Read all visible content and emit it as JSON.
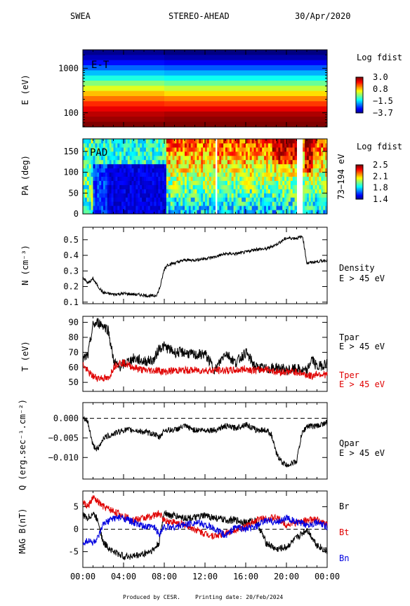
{
  "header": {
    "instrument": "SWEA",
    "spacecraft": "STEREO-AHEAD",
    "date": "30/Apr/2020"
  },
  "footer": {
    "produced": "Produced by CESR.",
    "printing": "Printing date: 20/Feb/2024"
  },
  "colors": {
    "tpar": "#000000",
    "tper": "#e00000",
    "br": "#000000",
    "bt": "#e00000",
    "bn": "#0000e0"
  },
  "x_ticks": [
    "00:00",
    "04:00",
    "08:00",
    "12:00",
    "16:00",
    "20:00",
    "00:00"
  ],
  "chart_data": [
    {
      "type": "heatmap",
      "panel": "E-T spectrogram",
      "inset_label": "E-T",
      "ylabel": "E (eV)",
      "yscale": "log",
      "ytick_labels": [
        "1000",
        "100"
      ],
      "colorbar_title": "Log fdist",
      "colorbar_ticks": [
        "3.0",
        "0.8",
        "−1.5",
        "−3.7"
      ],
      "colorbar_range": [
        -3.7,
        3.0
      ],
      "rows_note": "energy bins from high (top) to low (bottom)",
      "values": {
        "segment1_0000_0800": [
          -3.6,
          -3.3,
          -2.8,
          -2.2,
          -1.6,
          -1.0,
          -0.3,
          0.3,
          0.9,
          1.4,
          1.9,
          2.3,
          2.6,
          2.8,
          3.0
        ],
        "segment2_0800_2400": [
          -3.7,
          -3.4,
          -2.9,
          -2.3,
          -1.7,
          -1.1,
          -0.5,
          0.1,
          0.7,
          1.3,
          1.8,
          2.3,
          2.7,
          2.9,
          3.0
        ]
      }
    },
    {
      "type": "heatmap",
      "panel": "Pitch angle distribution",
      "inset_label": "PAD",
      "ylabel": "PA (deg)",
      "right_label": "73−194 eV",
      "yticks": [
        0,
        50,
        100,
        150
      ],
      "ylim": [
        0,
        180
      ],
      "colorbar_title": "Log fdist",
      "colorbar_ticks": [
        "2.5",
        "2.1",
        "1.8",
        "1.4"
      ],
      "colorbar_range": [
        1.4,
        2.5
      ]
    },
    {
      "type": "line",
      "panel": "Density",
      "ylabel": "N (cm⁻³)",
      "legend": [
        "Density",
        "E > 45 eV"
      ],
      "yticks": [
        0.1,
        0.2,
        0.3,
        0.4,
        0.5
      ],
      "ylim": [
        0.09,
        0.58
      ],
      "x_hours": [
        0,
        0.5,
        1,
        1.5,
        2,
        3,
        4,
        5,
        6,
        6.5,
        7,
        7.3,
        7.6,
        8,
        8.3,
        9,
        10,
        11,
        12,
        13,
        14,
        15,
        16,
        17,
        18,
        19,
        20,
        21,
        21.6,
        22,
        23,
        24
      ],
      "values": [
        0.26,
        0.22,
        0.25,
        0.2,
        0.16,
        0.15,
        0.155,
        0.15,
        0.145,
        0.14,
        0.14,
        0.15,
        0.2,
        0.31,
        0.34,
        0.35,
        0.37,
        0.37,
        0.38,
        0.39,
        0.41,
        0.41,
        0.42,
        0.44,
        0.44,
        0.47,
        0.51,
        0.51,
        0.52,
        0.35,
        0.36,
        0.37
      ]
    },
    {
      "type": "line",
      "panel": "Temperature",
      "ylabel": "T (eV)",
      "yticks": [
        50,
        60,
        70,
        80,
        90
      ],
      "ylim": [
        44,
        94
      ],
      "series": [
        {
          "name": "Tpar",
          "label2": "E > 45 eV",
          "x_hours": [
            0,
            0.5,
            1,
            1.5,
            2,
            2.5,
            3,
            3.5,
            4,
            5,
            6,
            7,
            7.5,
            8,
            9,
            10,
            11,
            12,
            13,
            14,
            15,
            16,
            17,
            18,
            19,
            20,
            21,
            22,
            22.5,
            23,
            24
          ],
          "values": [
            65,
            68,
            88,
            90,
            88,
            85,
            65,
            60,
            62,
            66,
            64,
            65,
            73,
            74,
            70,
            70,
            68,
            69,
            58,
            70,
            63,
            70,
            60,
            59,
            60,
            58,
            59,
            57,
            66,
            60,
            63
          ]
        },
        {
          "name": "Tper",
          "label2": "E > 45 eV",
          "x_hours": [
            0,
            0.5,
            1,
            1.5,
            2,
            2.5,
            3,
            3.5,
            4,
            5,
            6,
            7,
            7.5,
            8,
            9,
            10,
            11,
            12,
            13,
            14,
            15,
            16,
            17,
            18,
            19,
            20,
            21,
            22,
            22.5,
            23,
            24
          ],
          "values": [
            62,
            57,
            54,
            53,
            53,
            52,
            60,
            63,
            63,
            60,
            58,
            58,
            58,
            57,
            58,
            58,
            58,
            58,
            58,
            58,
            58,
            59,
            58,
            59,
            57,
            57,
            57,
            55,
            54,
            56,
            55
          ]
        }
      ]
    },
    {
      "type": "line",
      "panel": "Heat flux",
      "ylabel": "Q (erg.sec⁻¹.cm⁻²)",
      "legend": [
        "Qpar",
        "E > 45 eV"
      ],
      "yticks": [
        0.0,
        -0.005,
        -0.01
      ],
      "ytick_labels": [
        "0.000",
        "−0.005",
        "−0.010"
      ],
      "ylim": [
        -0.0155,
        0.004
      ],
      "reference_line": 0.0,
      "x_hours": [
        0,
        0.5,
        1,
        1.5,
        2,
        3,
        4,
        5,
        6,
        7,
        7.5,
        8,
        9,
        10,
        11,
        12,
        13,
        14,
        15,
        16,
        17,
        18,
        18.5,
        19,
        19.5,
        20,
        21,
        21.5,
        22,
        23,
        24
      ],
      "values": [
        0.0,
        -0.001,
        -0.007,
        -0.008,
        -0.005,
        -0.004,
        -0.003,
        -0.003,
        -0.0035,
        -0.004,
        -0.005,
        -0.003,
        -0.003,
        -0.002,
        -0.003,
        -0.003,
        -0.003,
        -0.002,
        -0.0025,
        -0.0015,
        -0.003,
        -0.003,
        -0.004,
        -0.009,
        -0.011,
        -0.012,
        -0.011,
        -0.004,
        -0.002,
        -0.002,
        -0.001
      ]
    },
    {
      "type": "line",
      "panel": "Magnetic field",
      "ylabel": "MAG B(nT)",
      "yticks": [
        -5,
        0,
        5
      ],
      "ylim": [
        -8.5,
        8.5
      ],
      "reference_line": 0,
      "series": [
        {
          "name": "Br",
          "x_hours": [
            0,
            0.5,
            1,
            1.5,
            2,
            3,
            4,
            5,
            6,
            7,
            7.5,
            8,
            8.5,
            9,
            10,
            11,
            12,
            13,
            14,
            15,
            16,
            17,
            18,
            19,
            20,
            21,
            22,
            23,
            24
          ],
          "values": [
            3,
            2.5,
            3.5,
            2,
            -3,
            -5,
            -6,
            -6,
            -5.5,
            -4.5,
            -3,
            4,
            3,
            3,
            2.5,
            2.5,
            3,
            2.5,
            2,
            2,
            1.5,
            2,
            -3,
            -4.5,
            -4,
            -2,
            0,
            -3.5,
            -5
          ]
        },
        {
          "name": "Bt",
          "x_hours": [
            0,
            0.5,
            1,
            1.5,
            2,
            3,
            4,
            5,
            6,
            7,
            7.5,
            8,
            9,
            10,
            11,
            12,
            13,
            14,
            15,
            16,
            17,
            18,
            19,
            20,
            21,
            22,
            23,
            24
          ],
          "values": [
            6,
            5,
            7,
            6,
            5,
            4,
            3,
            2,
            2.5,
            3,
            3.5,
            2,
            1.5,
            1,
            0,
            -1,
            -1.5,
            -1,
            0,
            0.5,
            2,
            2.5,
            2.5,
            1,
            1.5,
            2,
            2,
            1
          ]
        },
        {
          "name": "Bn",
          "x_hours": [
            0,
            0.5,
            1,
            1.5,
            2,
            3,
            4,
            5,
            6,
            7,
            7.5,
            8,
            9,
            10,
            11,
            12,
            13,
            14,
            15,
            16,
            17,
            18,
            19,
            20,
            21,
            22,
            23,
            24
          ],
          "values": [
            -3,
            -2.5,
            -3,
            -2,
            1,
            2.5,
            2.5,
            1.5,
            0.5,
            0.5,
            -1,
            0.5,
            0.5,
            1,
            1.5,
            1,
            0,
            -1.5,
            0.5,
            0,
            0.5,
            2,
            1.5,
            2.5,
            1.5,
            1,
            1.5,
            0.5
          ]
        }
      ]
    }
  ]
}
